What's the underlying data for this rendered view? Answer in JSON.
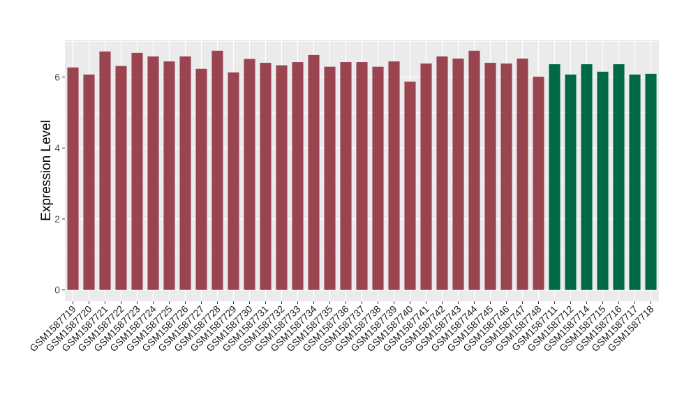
{
  "chart_data": {
    "type": "bar",
    "title": "",
    "xlabel": "",
    "ylabel": "Expression Level",
    "ylim": [
      -0.32,
      7.05
    ],
    "yticks": [
      0,
      2,
      4,
      6
    ],
    "grid": true,
    "legend": "none",
    "colors": {
      "group1": "#9a4450",
      "group2": "#006a45",
      "panel": "#ebebeb",
      "gridline": "#ffffff"
    },
    "categories": [
      "GSM1587719",
      "GSM1587720",
      "GSM1587721",
      "GSM1587722",
      "GSM1587723",
      "GSM1587724",
      "GSM1587725",
      "GSM1587726",
      "GSM1587727",
      "GSM1587728",
      "GSM1587729",
      "GSM1587730",
      "GSM1587731",
      "GSM1587732",
      "GSM1587733",
      "GSM1587734",
      "GSM1587735",
      "GSM1587736",
      "GSM1587737",
      "GSM1587738",
      "GSM1587739",
      "GSM1587740",
      "GSM1587741",
      "GSM1587742",
      "GSM1587743",
      "GSM1587744",
      "GSM1587745",
      "GSM1587746",
      "GSM1587747",
      "GSM1587748",
      "GSM1587711",
      "GSM1587712",
      "GSM1587714",
      "GSM1587715",
      "GSM1587716",
      "GSM1587717",
      "GSM1587718"
    ],
    "values": [
      6.27,
      6.07,
      6.72,
      6.31,
      6.68,
      6.58,
      6.44,
      6.58,
      6.23,
      6.74,
      6.13,
      6.51,
      6.4,
      6.33,
      6.42,
      6.62,
      6.29,
      6.42,
      6.42,
      6.29,
      6.44,
      5.87,
      6.38,
      6.58,
      6.52,
      6.74,
      6.4,
      6.38,
      6.52,
      6.01,
      6.36,
      6.07,
      6.36,
      6.15,
      6.36,
      6.07,
      6.09
    ],
    "groups": [
      1,
      1,
      1,
      1,
      1,
      1,
      1,
      1,
      1,
      1,
      1,
      1,
      1,
      1,
      1,
      1,
      1,
      1,
      1,
      1,
      1,
      1,
      1,
      1,
      1,
      1,
      1,
      1,
      1,
      1,
      2,
      2,
      2,
      2,
      2,
      2,
      2
    ]
  }
}
